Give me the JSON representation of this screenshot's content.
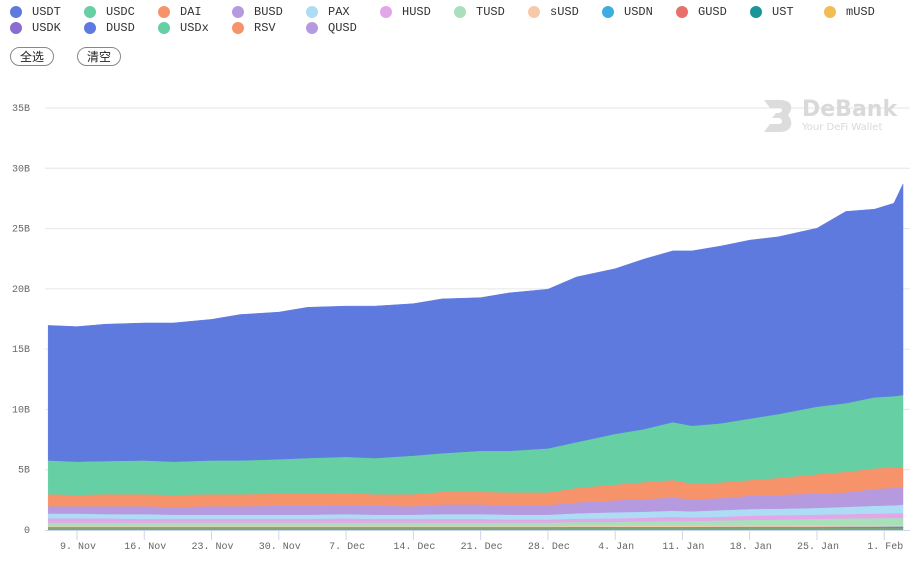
{
  "controls": {
    "select_all": "全选",
    "clear": "清空"
  },
  "watermark": {
    "title": "DeBank",
    "subtitle": "Your DeFi Wallet"
  },
  "chart_data": {
    "type": "area",
    "stacking": "normal",
    "legend_position": "top-left",
    "grid": true,
    "ylim": [
      0,
      35
    ],
    "y_unit": "B",
    "y_ticks": [
      "0",
      "5B",
      "10B",
      "15B",
      "20B",
      "25B",
      "30B",
      "35B"
    ],
    "x_ticks": [
      {
        "label": "9. Nov",
        "date": "2020-11-09"
      },
      {
        "label": "16. Nov",
        "date": "2020-11-16"
      },
      {
        "label": "23. Nov",
        "date": "2020-11-23"
      },
      {
        "label": "30. Nov",
        "date": "2020-11-30"
      },
      {
        "label": "7. Dec",
        "date": "2020-12-07"
      },
      {
        "label": "14. Dec",
        "date": "2020-12-14"
      },
      {
        "label": "21. Dec",
        "date": "2020-12-21"
      },
      {
        "label": "28. Dec",
        "date": "2020-12-28"
      },
      {
        "label": "4. Jan",
        "date": "2021-01-04"
      },
      {
        "label": "11. Jan",
        "date": "2021-01-11"
      },
      {
        "label": "18. Jan",
        "date": "2021-01-18"
      },
      {
        "label": "25. Jan",
        "date": "2021-01-25"
      },
      {
        "label": "1. Feb",
        "date": "2021-02-01"
      }
    ],
    "x": [
      "2020-11-06",
      "2020-11-09",
      "2020-11-12",
      "2020-11-16",
      "2020-11-19",
      "2020-11-23",
      "2020-11-26",
      "2020-11-30",
      "2020-12-03",
      "2020-12-07",
      "2020-12-10",
      "2020-12-14",
      "2020-12-17",
      "2020-12-21",
      "2020-12-24",
      "2020-12-28",
      "2020-12-31",
      "2021-01-04",
      "2021-01-07",
      "2021-01-10",
      "2021-01-12",
      "2021-01-15",
      "2021-01-18",
      "2021-01-21",
      "2021-01-25",
      "2021-01-28",
      "2021-01-31",
      "2021-02-02",
      "2021-02-03"
    ],
    "series": [
      {
        "name": "USDT",
        "color": "#5f7ade",
        "values": [
          11.2,
          11.2,
          11.35,
          11.4,
          11.5,
          11.7,
          12.1,
          12.2,
          12.5,
          12.5,
          12.6,
          12.6,
          12.8,
          12.7,
          13.1,
          13.2,
          13.7,
          13.7,
          14.1,
          14.2,
          14.5,
          14.7,
          14.8,
          14.7,
          14.8,
          15.9,
          15.6,
          16.0,
          17.5
        ]
      },
      {
        "name": "USDC",
        "color": "#66cfa4",
        "values": [
          2.8,
          2.75,
          2.75,
          2.8,
          2.75,
          2.8,
          2.8,
          2.85,
          2.95,
          3.0,
          3.0,
          3.2,
          3.2,
          3.4,
          3.45,
          3.65,
          3.8,
          4.2,
          4.4,
          4.8,
          4.8,
          4.9,
          5.1,
          5.3,
          5.6,
          5.7,
          5.9,
          5.9,
          6.0
        ]
      },
      {
        "name": "DAI",
        "color": "#f7936b",
        "values": [
          1.0,
          0.95,
          1.0,
          1.0,
          1.0,
          1.0,
          1.0,
          1.0,
          1.0,
          1.0,
          0.95,
          1.0,
          1.05,
          1.05,
          1.05,
          1.05,
          1.2,
          1.3,
          1.4,
          1.45,
          1.3,
          1.3,
          1.3,
          1.4,
          1.6,
          1.7,
          1.7,
          1.7,
          1.7
        ]
      },
      {
        "name": "BUSD",
        "color": "#b69ae0",
        "values": [
          0.6,
          0.6,
          0.65,
          0.65,
          0.65,
          0.7,
          0.7,
          0.75,
          0.75,
          0.75,
          0.75,
          0.7,
          0.8,
          0.8,
          0.8,
          0.8,
          0.9,
          1.0,
          1.05,
          1.1,
          1.0,
          1.0,
          1.1,
          1.15,
          1.2,
          1.2,
          1.4,
          1.45,
          1.4
        ]
      },
      {
        "name": "PAX",
        "color": "#addcf5",
        "values": [
          0.4,
          0.4,
          0.35,
          0.4,
          0.35,
          0.35,
          0.35,
          0.35,
          0.35,
          0.35,
          0.35,
          0.35,
          0.4,
          0.4,
          0.4,
          0.4,
          0.45,
          0.5,
          0.5,
          0.5,
          0.5,
          0.55,
          0.55,
          0.55,
          0.55,
          0.6,
          0.65,
          0.65,
          0.7
        ]
      },
      {
        "name": "HUSD",
        "color": "#e3a6e8",
        "values": [
          0.35,
          0.35,
          0.35,
          0.3,
          0.3,
          0.3,
          0.3,
          0.3,
          0.3,
          0.35,
          0.3,
          0.3,
          0.3,
          0.3,
          0.25,
          0.25,
          0.27,
          0.3,
          0.3,
          0.35,
          0.3,
          0.3,
          0.35,
          0.35,
          0.35,
          0.35,
          0.37,
          0.4,
          0.4
        ]
      },
      {
        "name": "TUSD",
        "color": "#a9e0bc",
        "values": [
          0.3,
          0.3,
          0.3,
          0.3,
          0.3,
          0.3,
          0.3,
          0.3,
          0.3,
          0.3,
          0.3,
          0.3,
          0.3,
          0.3,
          0.3,
          0.3,
          0.33,
          0.33,
          0.37,
          0.4,
          0.4,
          0.43,
          0.47,
          0.5,
          0.55,
          0.58,
          0.6,
          0.6,
          0.6
        ]
      },
      {
        "name": "sUSD",
        "color": "#f8c9a8",
        "values": [
          0.06,
          0.06,
          0.06,
          0.06,
          0.06,
          0.06,
          0.06,
          0.06,
          0.06,
          0.06,
          0.06,
          0.06,
          0.06,
          0.06,
          0.06,
          0.06,
          0.07,
          0.07,
          0.08,
          0.08,
          0.08,
          0.09,
          0.09,
          0.09,
          0.1,
          0.1,
          0.1,
          0.1,
          0.1
        ]
      },
      {
        "name": "USDN",
        "color": "#3faede",
        "values": [
          0.05,
          0.05,
          0.05,
          0.05,
          0.05,
          0.05,
          0.05,
          0.05,
          0.05,
          0.05,
          0.05,
          0.05,
          0.05,
          0.05,
          0.05,
          0.05,
          0.05,
          0.05,
          0.05,
          0.05,
          0.05,
          0.05,
          0.05,
          0.05,
          0.05,
          0.05,
          0.05,
          0.05,
          0.05
        ]
      },
      {
        "name": "GUSD",
        "color": "#e8706c",
        "values": [
          0.03,
          0.03,
          0.03,
          0.03,
          0.03,
          0.03,
          0.03,
          0.03,
          0.03,
          0.03,
          0.03,
          0.03,
          0.03,
          0.03,
          0.03,
          0.03,
          0.03,
          0.03,
          0.03,
          0.03,
          0.03,
          0.03,
          0.03,
          0.03,
          0.03,
          0.03,
          0.03,
          0.03,
          0.03
        ]
      },
      {
        "name": "UST",
        "color": "#17979a",
        "values": [
          0.04,
          0.04,
          0.04,
          0.04,
          0.04,
          0.04,
          0.04,
          0.04,
          0.04,
          0.04,
          0.04,
          0.04,
          0.04,
          0.04,
          0.04,
          0.04,
          0.05,
          0.05,
          0.05,
          0.05,
          0.05,
          0.06,
          0.06,
          0.06,
          0.06,
          0.07,
          0.07,
          0.08,
          0.08
        ]
      },
      {
        "name": "mUSD",
        "color": "#f3bd55",
        "values": [
          0.03,
          0.03,
          0.03,
          0.03,
          0.03,
          0.03,
          0.03,
          0.03,
          0.03,
          0.03,
          0.03,
          0.03,
          0.03,
          0.03,
          0.03,
          0.03,
          0.03,
          0.03,
          0.03,
          0.03,
          0.03,
          0.03,
          0.03,
          0.03,
          0.03,
          0.03,
          0.03,
          0.03,
          0.03
        ]
      },
      {
        "name": "USDK",
        "color": "#8a6dd1",
        "values": [
          0.03,
          0.03,
          0.03,
          0.03,
          0.03,
          0.03,
          0.03,
          0.03,
          0.03,
          0.03,
          0.03,
          0.03,
          0.03,
          0.03,
          0.03,
          0.03,
          0.03,
          0.03,
          0.03,
          0.03,
          0.03,
          0.03,
          0.03,
          0.03,
          0.03,
          0.03,
          0.03,
          0.03,
          0.03
        ]
      },
      {
        "name": "DUSD",
        "color": "#5f7ade",
        "values": [
          0.02,
          0.02,
          0.02,
          0.02,
          0.02,
          0.02,
          0.02,
          0.02,
          0.02,
          0.02,
          0.02,
          0.02,
          0.02,
          0.02,
          0.02,
          0.02,
          0.02,
          0.02,
          0.02,
          0.02,
          0.02,
          0.02,
          0.02,
          0.02,
          0.02,
          0.02,
          0.02,
          0.02,
          0.02
        ]
      },
      {
        "name": "USDx",
        "color": "#66cfa4",
        "values": [
          0.02,
          0.02,
          0.02,
          0.02,
          0.02,
          0.02,
          0.02,
          0.02,
          0.02,
          0.02,
          0.02,
          0.02,
          0.02,
          0.02,
          0.02,
          0.02,
          0.02,
          0.02,
          0.02,
          0.02,
          0.02,
          0.02,
          0.02,
          0.02,
          0.02,
          0.02,
          0.02,
          0.02,
          0.02
        ]
      },
      {
        "name": "RSV",
        "color": "#f7936b",
        "values": [
          0.02,
          0.02,
          0.02,
          0.02,
          0.02,
          0.02,
          0.02,
          0.02,
          0.02,
          0.02,
          0.02,
          0.02,
          0.02,
          0.02,
          0.02,
          0.02,
          0.02,
          0.02,
          0.02,
          0.02,
          0.02,
          0.02,
          0.02,
          0.02,
          0.02,
          0.02,
          0.02,
          0.02,
          0.02
        ]
      },
      {
        "name": "QUSD",
        "color": "#b69ae0",
        "values": [
          0.02,
          0.02,
          0.02,
          0.02,
          0.02,
          0.02,
          0.02,
          0.02,
          0.02,
          0.02,
          0.02,
          0.02,
          0.02,
          0.02,
          0.02,
          0.02,
          0.02,
          0.02,
          0.02,
          0.02,
          0.02,
          0.02,
          0.02,
          0.02,
          0.02,
          0.02,
          0.02,
          0.02,
          0.02
        ]
      }
    ]
  }
}
